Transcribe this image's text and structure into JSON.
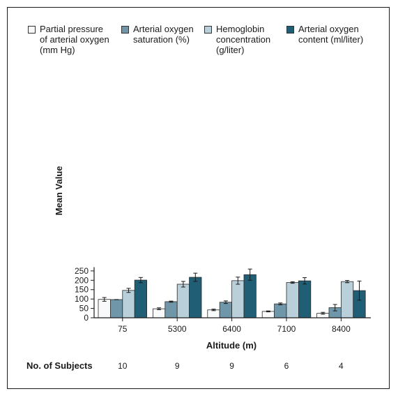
{
  "chart_data": {
    "type": "bar",
    "xlabel": "Altitude (m)",
    "ylabel": "Mean Value",
    "ylim": [
      0,
      270
    ],
    "yticks": [
      0,
      50,
      100,
      150,
      200,
      250
    ],
    "categories": [
      "75",
      "5300",
      "6400",
      "7100",
      "8400"
    ],
    "series": [
      {
        "name": "Partial pressure\nof arterial oxygen\n(mm Hg)",
        "color": "#f7f9fa",
        "values": [
          98,
          48,
          42,
          34,
          24
        ],
        "errors": [
          10,
          5,
          4,
          2.5,
          5
        ]
      },
      {
        "name": "Arterial oxygen\nsaturation (%)",
        "color": "#6f97a9",
        "values": [
          97,
          86,
          83,
          74,
          54
        ],
        "errors": [
          0.5,
          3,
          7,
          5,
          17
        ]
      },
      {
        "name": "Hemoglobin\nconcentration\n(g/liter)",
        "color": "#b9d0da",
        "values": [
          146,
          179,
          198,
          188,
          193
        ],
        "errors": [
          11,
          15,
          19,
          4,
          6
        ]
      },
      {
        "name": "Arterial oxygen\ncontent (ml/liter)",
        "color": "#1f5e74",
        "values": [
          201,
          216,
          230,
          197,
          145
        ],
        "errors": [
          14,
          22,
          30,
          17,
          51
        ]
      }
    ],
    "subjects_label": "No. of Subjects",
    "subjects": [
      "10",
      "9",
      "9",
      "6",
      "4"
    ],
    "legend_position": "top"
  }
}
